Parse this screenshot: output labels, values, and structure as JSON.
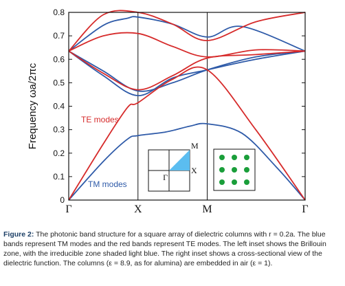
{
  "chart_data": {
    "type": "line",
    "ylabel": "Frequency  ωa/2πc",
    "ylim": [
      0,
      0.8
    ],
    "yticks": [
      0,
      0.1,
      0.2,
      0.3,
      0.4,
      0.5,
      0.6,
      0.7,
      0.8
    ],
    "x_ticks": [
      {
        "label": "Γ",
        "pos": 0
      },
      {
        "label": "X",
        "pos": 1
      },
      {
        "label": "M",
        "pos": 2
      },
      {
        "label": "Γ",
        "pos": 3.414
      }
    ],
    "series": [
      {
        "name": "TM modes",
        "color": "#2e5aa8",
        "bands": [
          [
            [
              0,
              0
            ],
            [
              0.5,
              0.165
            ],
            [
              0.85,
              0.26
            ],
            [
              1,
              0.275
            ],
            [
              1.4,
              0.29
            ],
            [
              1.75,
              0.315
            ],
            [
              2,
              0.325
            ],
            [
              2.5,
              0.285
            ],
            [
              3,
              0.14
            ],
            [
              3.414,
              0
            ]
          ],
          [
            [
              0,
              0.635
            ],
            [
              0.5,
              0.53
            ],
            [
              1,
              0.445
            ],
            [
              1.5,
              0.52
            ],
            [
              2,
              0.555
            ],
            [
              2.7,
              0.6
            ],
            [
              3.414,
              0.635
            ]
          ],
          [
            [
              0,
              0.635
            ],
            [
              0.5,
              0.745
            ],
            [
              0.85,
              0.775
            ],
            [
              1,
              0.78
            ],
            [
              1.5,
              0.75
            ],
            [
              2,
              0.695
            ],
            [
              2.5,
              0.74
            ],
            [
              3.414,
              0.635
            ]
          ],
          [
            [
              0,
              0.635
            ],
            [
              0.5,
              0.55
            ],
            [
              1,
              0.465
            ],
            [
              1.5,
              0.5
            ],
            [
              2,
              0.555
            ],
            [
              2.7,
              0.61
            ],
            [
              3.414,
              0.635
            ]
          ]
        ]
      },
      {
        "name": "TE modes",
        "color": "#d62a2a",
        "bands": [
          [
            [
              0,
              0
            ],
            [
              0.5,
              0.24
            ],
            [
              0.85,
              0.395
            ],
            [
              1,
              0.415
            ],
            [
              1.5,
              0.515
            ],
            [
              2,
              0.555
            ],
            [
              2.7,
              0.3
            ],
            [
              3.414,
              0
            ]
          ],
          [
            [
              0,
              0.635
            ],
            [
              0.5,
              0.54
            ],
            [
              1,
              0.47
            ],
            [
              1.5,
              0.53
            ],
            [
              2,
              0.605
            ],
            [
              2.7,
              0.62
            ],
            [
              3.414,
              0.635
            ]
          ],
          [
            [
              0,
              0.635
            ],
            [
              0.5,
              0.7
            ],
            [
              1,
              0.71
            ],
            [
              1.5,
              0.655
            ],
            [
              2,
              0.61
            ],
            [
              2.7,
              0.64
            ],
            [
              3.414,
              0.635
            ]
          ],
          [
            [
              0,
              0.635
            ],
            [
              0.5,
              0.79
            ],
            [
              1,
              0.8
            ],
            [
              1.5,
              0.75
            ],
            [
              2,
              0.68
            ],
            [
              2.7,
              0.76
            ],
            [
              3.414,
              0.8
            ]
          ]
        ]
      }
    ],
    "annotations": [
      {
        "text": "TE modes",
        "color": "#d62a2a"
      },
      {
        "text": "TM modes",
        "color": "#2e5aa8"
      }
    ],
    "insets": {
      "brillouin": {
        "labels": [
          "M",
          "X",
          "Γ"
        ],
        "highlight_color": "#5bbdf0"
      },
      "dielectric": {
        "dot_color": "#1a9e3a",
        "rows": 3,
        "cols": 3
      }
    }
  },
  "caption": {
    "label": "Figure 2:",
    "text": "The photonic band structure for a square array of dielectric columns with r = 0.2a. The blue bands represent TM modes and the red bands represent TE modes. The left inset shows the Brillouin zone, with the irreducible zone shaded light blue. The right inset shows a cross-sectional view of the dielectric function. The columns (ε = 8.9, as for alumina) are embedded in air (ε = 1)."
  }
}
